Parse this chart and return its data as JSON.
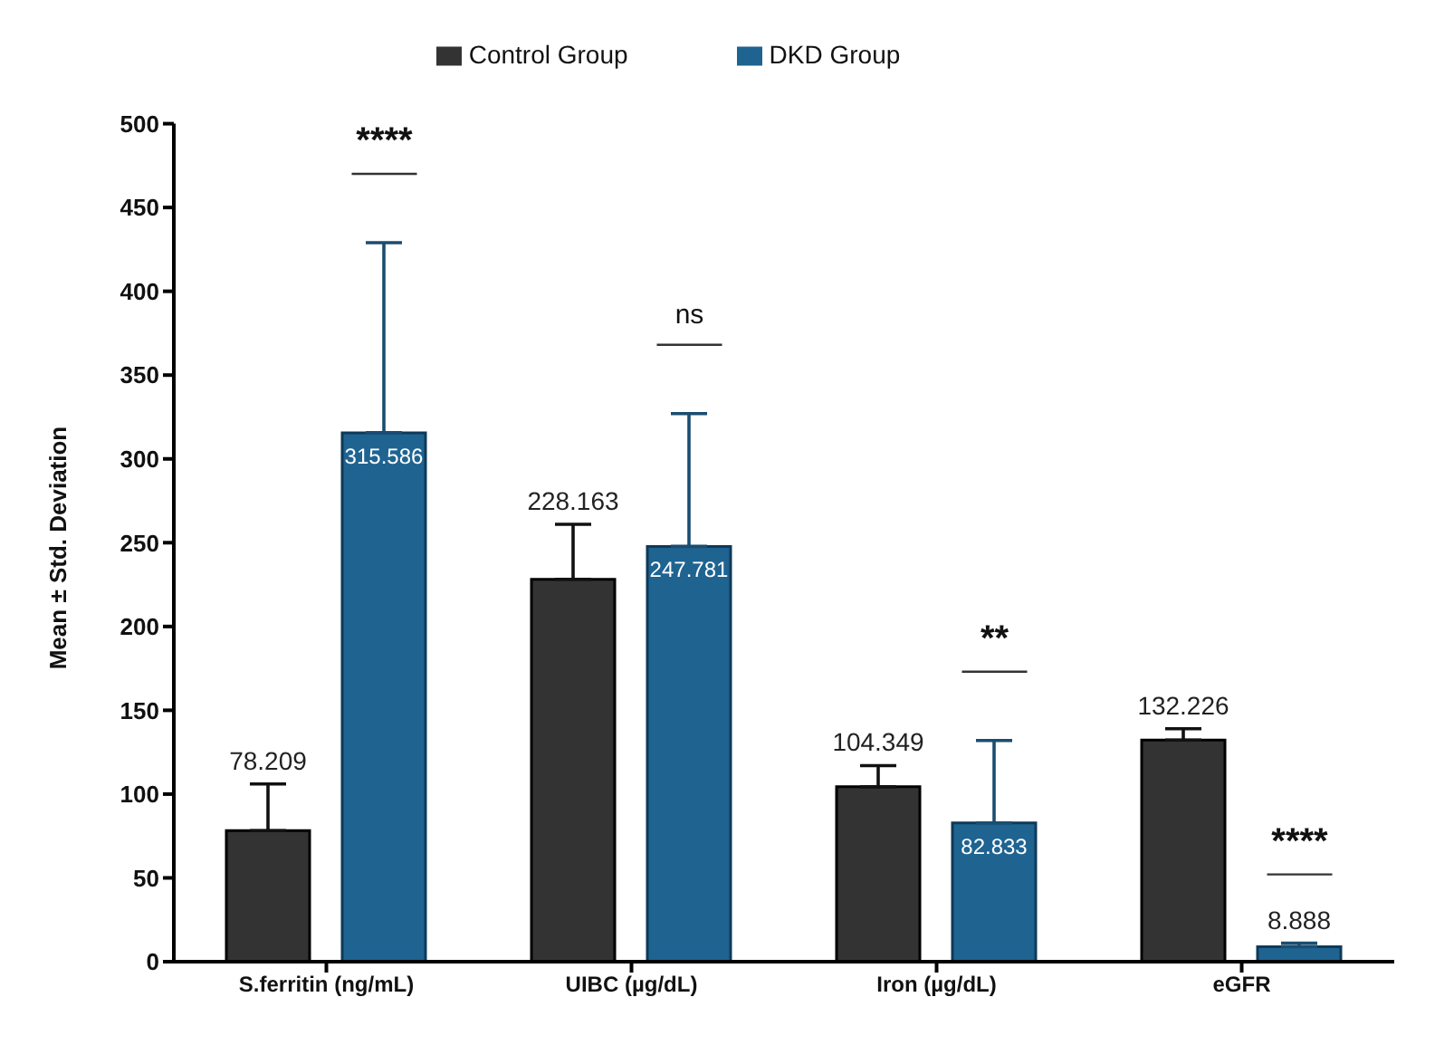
{
  "chart_data": {
    "type": "bar",
    "ylabel": "Mean ± Std. Deviation",
    "categories": [
      "S.ferritin (ng/mL)",
      "UIBC (µg/dL)",
      "Iron (µg/dL)",
      "eGFR"
    ],
    "series": [
      {
        "name": "Control Group",
        "color": "#333333",
        "values": [
          78.209,
          228.163,
          104.349,
          132.226
        ],
        "value_labels": [
          "78.209",
          "228.163",
          "104.349",
          "132.226"
        ],
        "errors": [
          [
            78.209,
            106
          ],
          [
            228.163,
            261
          ],
          [
            104.349,
            117
          ],
          [
            132.226,
            139
          ]
        ]
      },
      {
        "name": "DKD Group",
        "color": "#1f6391",
        "values": [
          315.586,
          247.781,
          82.833,
          8.888
        ],
        "value_labels": [
          "315.586",
          "247.781",
          "82.833",
          "8.888"
        ],
        "errors": [
          [
            315.586,
            429
          ],
          [
            247.781,
            327
          ],
          [
            82.833,
            132
          ],
          [
            8.888,
            11
          ]
        ]
      }
    ],
    "ylim": [
      0,
      500
    ],
    "yticks": [
      0,
      50,
      100,
      150,
      200,
      250,
      300,
      350,
      400,
      450,
      500
    ],
    "legend": "top",
    "grid": false,
    "annotations": [
      "****",
      "ns",
      "**",
      "****"
    ]
  }
}
